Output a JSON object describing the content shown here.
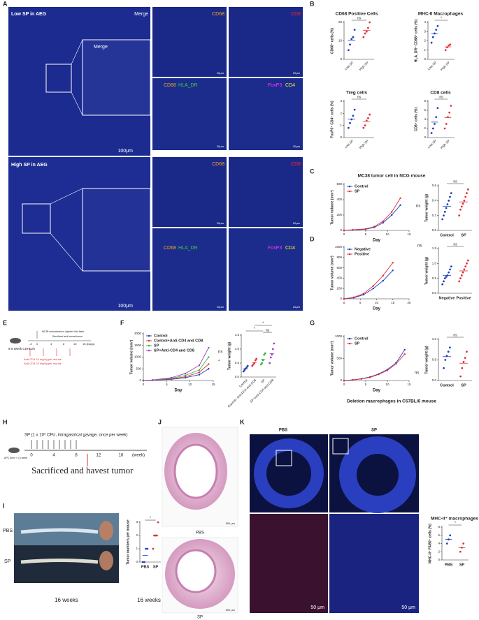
{
  "panels": [
    "A",
    "B",
    "C",
    "D",
    "E",
    "F",
    "G",
    "H",
    "I",
    "J",
    "K"
  ],
  "panel_a": {
    "low_title": "Low SP in AEG",
    "high_title": "High SP in AEG",
    "merge": "Merge",
    "cd68": "CD68",
    "cd8": "CD8",
    "hla": "HLA_DR",
    "foxp3": "FoxP3",
    "cd4": "CD4",
    "scale_large": "100μm",
    "scale_small": "20μm"
  },
  "panel_e": {
    "mouse": "6-8 Week C57BL/6",
    "injection": "MC38 subcutaneous injected into flank",
    "harvest": "Sacrificed and havest tumor",
    "anti_cd4": "Anti-CD4 10 mg/kg per mouse",
    "anti_cd8": "Anti-CD8 10 mg/kg per mouse",
    "days": [
      "-3",
      "0",
      "4",
      "8",
      "10",
      "15 (Days)"
    ]
  },
  "panel_h": {
    "treatment": "SP (1 x 10⁹ CFU, intragastrical gavage, once per week)",
    "mouse": "APC (min⁺/⁻) 6 week",
    "harvest": "Sacrificed and havest tumor",
    "weeks": [
      "0",
      "4",
      "8",
      "12",
      "16",
      "(week)"
    ]
  },
  "panel_i": {
    "pbs": "PBS",
    "sp": "SP",
    "duration": "16 weeks"
  },
  "panel_j": {
    "pbs": "PBS",
    "sp": "SP",
    "scale": "500 μm"
  },
  "panel_k": {
    "pbs": "PBS",
    "sp": "SP",
    "scale": "50 μm"
  },
  "chart_data": [
    {
      "type": "dot",
      "title": "CD68 Positive Cells",
      "y_label": "CD68⁺ cells (%)",
      "categories": [
        "Low SP",
        "High SP"
      ],
      "colors": [
        "#1f3fbf",
        "#e0303a"
      ],
      "values": [
        [
          5,
          8,
          11,
          12,
          16
        ],
        [
          12,
          14,
          15,
          17,
          20
        ]
      ],
      "ylim": [
        0,
        20
      ],
      "yticks": [
        0,
        10,
        20
      ],
      "annotations": [
        "ns"
      ]
    },
    {
      "type": "dot",
      "title": "MHC-II Macrophages",
      "y_label": "HLA_DR⁺ CD68⁺ cells (%)",
      "categories": [
        "Low SP",
        "High SP"
      ],
      "colors": [
        "#1f3fbf",
        "#e0303a"
      ],
      "values": [
        [
          1.8,
          2.4,
          2.8,
          3.2,
          3.6
        ],
        [
          1.0,
          1.3,
          1.5,
          1.6
        ]
      ],
      "ylim": [
        0,
        4
      ],
      "yticks": [
        0,
        1,
        2,
        3,
        4
      ],
      "annotations": [
        "*"
      ]
    },
    {
      "type": "dot",
      "title": "Treg cells",
      "y_label": "FoxP3⁺ CD4⁺ cells (%)",
      "categories": [
        "Low SP",
        "High SP"
      ],
      "colors": [
        "#1f3fbf",
        "#e0303a"
      ],
      "values": [
        [
          0.8,
          1.2,
          1.5,
          1.8,
          2.3
        ],
        [
          0.8,
          1.0,
          1.4,
          1.6,
          1.9
        ]
      ],
      "ylim": [
        0,
        3
      ],
      "yticks": [
        0,
        1,
        2,
        3
      ],
      "annotations": [
        "ns"
      ]
    },
    {
      "type": "dot",
      "title": "CD8 cells",
      "y_label": "CD8⁺ cells (%)",
      "categories": [
        "Low SP",
        "High SP"
      ],
      "colors": [
        "#1f3fbf",
        "#e0303a"
      ],
      "values": [
        [
          1,
          2,
          3,
          4.5,
          6.5
        ],
        [
          2,
          3,
          4.5,
          5.5,
          7
        ]
      ],
      "ylim": [
        0,
        8
      ],
      "yticks": [
        0,
        2,
        4,
        6,
        8
      ],
      "annotations": [
        "ns"
      ]
    },
    {
      "type": "line",
      "title": "MC38 tumor cell in NCG mouse",
      "x_label": "Day",
      "y_label": "Tumor volume (mm³)",
      "x": [
        0,
        2,
        5,
        7,
        9,
        11,
        13
      ],
      "series": [
        {
          "name": "Control",
          "color": "#1f3fbf",
          "values": [
            0,
            5,
            15,
            40,
            100,
            200,
            330
          ]
        },
        {
          "name": "SP",
          "color": "#e0303a",
          "values": [
            0,
            8,
            20,
            50,
            120,
            240,
            420
          ]
        }
      ],
      "xlim": [
        0,
        15
      ],
      "xticks": [
        0,
        5,
        10,
        15
      ],
      "ylim": [
        0,
        600
      ],
      "yticks": [
        0,
        200,
        400,
        600
      ],
      "legend": "upper left",
      "annotations": [
        "ns"
      ]
    },
    {
      "type": "dot",
      "y_label": "Tumor weight (g)",
      "categories": [
        "Control",
        "SP"
      ],
      "colors": [
        "#1f3fbf",
        "#e0303a"
      ],
      "values": [
        [
          0.15,
          0.2,
          0.25,
          0.3,
          0.35,
          0.4,
          0.45,
          0.5
        ],
        [
          0.2,
          0.28,
          0.32,
          0.36,
          0.4,
          0.45,
          0.5,
          0.55
        ]
      ],
      "ylim": [
        0,
        0.6
      ],
      "yticks": [
        {
          "value": 0,
          "label": "0.0"
        },
        0.2,
        0.4,
        0.6
      ],
      "annotations": [
        "ns"
      ]
    },
    {
      "type": "line",
      "x_label": "Day",
      "y_label": "Tumor volume (mm³)",
      "x": [
        0,
        3,
        6,
        9,
        12,
        15
      ],
      "series": [
        {
          "name": "Negative",
          "color": "#1f3fbf",
          "values": [
            0,
            20,
            80,
            200,
            350,
            550
          ]
        },
        {
          "name": "Positive",
          "color": "#e0303a",
          "values": [
            0,
            30,
            100,
            250,
            450,
            700
          ]
        }
      ],
      "xlim": [
        0,
        20
      ],
      "xticks": [
        0,
        5,
        10,
        15,
        20
      ],
      "ylim": [
        0,
        1000
      ],
      "yticks": [
        0,
        200,
        400,
        600,
        800,
        1000
      ],
      "legend": "upper left",
      "annotations": [
        "ns"
      ]
    },
    {
      "type": "dot",
      "y_label": "Tumor weight (g)",
      "categories": [
        "Negative",
        "Positive"
      ],
      "colors": [
        "#1f3fbf",
        "#e0303a"
      ],
      "values": [
        [
          0.3,
          0.4,
          0.5,
          0.55,
          0.6,
          0.7,
          0.8,
          0.9
        ],
        [
          0.4,
          0.5,
          0.6,
          0.7,
          0.8,
          0.9,
          1.0,
          1.1
        ]
      ],
      "ylim": [
        0,
        1.5
      ],
      "yticks": [
        {
          "value": 0,
          "label": "0.0"
        },
        0.5,
        {
          "value": 1,
          "label": "1.0"
        },
        1.5
      ],
      "annotations": [
        "ns"
      ]
    },
    {
      "type": "line",
      "x_label": "Day",
      "y_label": "Tumor volume (mm³)",
      "x": [
        0,
        2,
        6,
        9,
        12,
        14
      ],
      "series": [
        {
          "name": "Control",
          "color": "#1f3fbf",
          "values": [
            0,
            10,
            50,
            120,
            250,
            500
          ]
        },
        {
          "name": "Control+Anti-CD4 and CD8",
          "color": "#e0303a",
          "values": [
            0,
            15,
            70,
            160,
            350,
            700
          ]
        },
        {
          "name": "SP",
          "color": "#3ab53a",
          "values": [
            0,
            20,
            90,
            220,
            450,
            1000
          ]
        },
        {
          "name": "SP+Anti-CD4 and CD8",
          "color": "#a040c0",
          "values": [
            0,
            25,
            120,
            300,
            650,
            1400
          ]
        }
      ],
      "xlim": [
        0,
        15
      ],
      "xticks": [
        0,
        5,
        10,
        15
      ],
      "ylim": [
        0,
        2000
      ],
      "yticks": [
        0,
        500,
        1000,
        1500,
        2000
      ],
      "legend": "upper left",
      "annotations": [
        "ns",
        "*"
      ]
    },
    {
      "type": "dot",
      "y_label": "Tumor weight (g)",
      "categories": [
        "Control",
        "Control+ Anti-CD4 and CD8",
        "SP",
        "SP+Anti-CD4 and CD8"
      ],
      "colors": [
        "#1f3fbf",
        "#e0303a",
        "#3ab53a",
        "#a040c0"
      ],
      "values": [
        [
          0.2,
          0.25,
          0.3,
          0.35,
          0.4
        ],
        [
          0.4,
          0.45,
          0.5,
          0.6,
          0.65
        ],
        [
          0.45,
          0.5,
          0.6,
          0.8,
          0.85
        ],
        [
          0.5,
          0.7,
          0.8,
          1.0,
          1.2
        ]
      ],
      "ylim": [
        0,
        1.5
      ],
      "yticks": [
        {
          "value": 0,
          "label": "0.0"
        },
        0.5,
        {
          "value": 1,
          "label": "1.0"
        },
        1.5
      ],
      "annotations": [
        "*",
        "*",
        "ns"
      ]
    },
    {
      "type": "line",
      "title": "Deletion macrophages in C57BL/6 mouse",
      "x_label": "Day",
      "y_label": "Tumor volume (mm³)",
      "x": [
        0,
        2,
        4,
        6,
        8,
        10,
        12,
        14
      ],
      "series": [
        {
          "name": "Control",
          "color": "#1f3fbf",
          "values": [
            0,
            15,
            40,
            80,
            150,
            250,
            400,
            700
          ]
        },
        {
          "name": "SP",
          "color": "#e0303a",
          "values": [
            0,
            12,
            35,
            70,
            140,
            230,
            380,
            600
          ]
        }
      ],
      "xlim": [
        0,
        15
      ],
      "xticks": [
        0,
        5,
        10,
        15
      ],
      "ylim": [
        0,
        1000
      ],
      "yticks": [
        0,
        500,
        1000
      ],
      "legend": "upper left",
      "annotations": [
        "ns"
      ]
    },
    {
      "type": "dot",
      "y_label": "Tumor weight (g)",
      "categories": [
        "Control",
        "SP"
      ],
      "colors": [
        "#1f3fbf",
        "#e0303a"
      ],
      "values": [
        [
          0.3,
          0.5,
          0.6,
          0.7,
          0.8
        ],
        [
          0.1,
          0.3,
          0.45,
          0.55,
          0.7
        ]
      ],
      "ylim": [
        0,
        1
      ],
      "yticks": [
        {
          "value": 0,
          "label": "0.0"
        },
        0.5,
        {
          "value": 1,
          "label": "1.0"
        }
      ],
      "annotations": [
        "ns"
      ]
    },
    {
      "type": "dot",
      "y_label": "Tumor numbers per mouse",
      "categories": [
        "PBS",
        "SP"
      ],
      "colors": [
        "#1f3fbf",
        "#e0303a"
      ],
      "values": [
        [
          0,
          0,
          1,
          1
        ],
        [
          1,
          2,
          2,
          2,
          3
        ]
      ],
      "ylim": [
        0,
        3
      ],
      "yticks": [
        0,
        1,
        2,
        3
      ],
      "annotations": [
        "*"
      ]
    },
    {
      "type": "dot",
      "title": "MHC-II⁺ macrophages",
      "y_label": "MHC-II⁺ F4/80⁺ cells (%)",
      "categories": [
        "PBS",
        "SP"
      ],
      "colors": [
        "#1f3fbf",
        "#e0303a"
      ],
      "values": [
        [
          4,
          5,
          6
        ],
        [
          2,
          3,
          4
        ]
      ],
      "ylim": [
        0,
        8
      ],
      "yticks": [
        0,
        2,
        4,
        6,
        8
      ],
      "annotations": [
        "*"
      ]
    }
  ]
}
